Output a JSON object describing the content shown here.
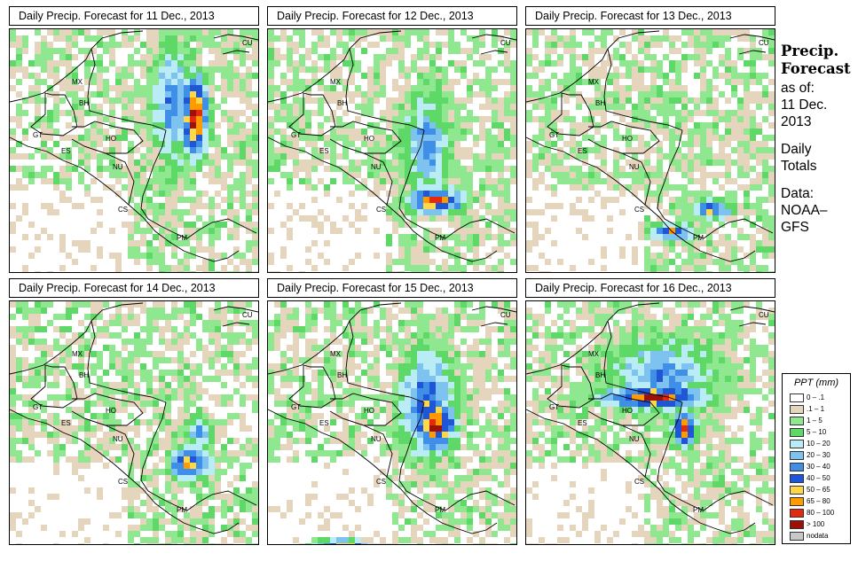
{
  "panels": [
    {
      "title": "Daily Precip. Forecast for  11 Dec., 2013",
      "seed": 11
    },
    {
      "title": "Daily Precip. Forecast for  12 Dec., 2013",
      "seed": 12
    },
    {
      "title": "Daily Precip. Forecast for  13 Dec., 2013",
      "seed": 13
    },
    {
      "title": "Daily Precip. Forecast for  14 Dec., 2013",
      "seed": 14
    },
    {
      "title": "Daily Precip. Forecast for  15 Dec., 2013",
      "seed": 15
    },
    {
      "title": "Daily Precip. Forecast for  16 Dec., 2013",
      "seed": 16
    }
  ],
  "country_labels": [
    "MX",
    "BH",
    "GT",
    "HO",
    "ES",
    "NU",
    "CS",
    "PM",
    "CU"
  ],
  "sidebar": {
    "heading_line1": "Precip.",
    "heading_line2": "Forecast",
    "asof_line1": "as of:",
    "asof_line2": "11 Dec.",
    "asof_line3": "2013",
    "totals_line1": "Daily",
    "totals_line2": "Totals",
    "data_line1": "Data:",
    "data_line2": "NOAA–",
    "data_line3": "GFS"
  },
  "legend": {
    "title": "PPT (mm)",
    "items": [
      {
        "label": "0 – .1",
        "color": "#ffffff"
      },
      {
        "label": ".1 – 1",
        "color": "#e5d5bd"
      },
      {
        "label": "1 – 5",
        "color": "#8fe88f"
      },
      {
        "label": "5 – 10",
        "color": "#5ed866"
      },
      {
        "label": "10 – 20",
        "color": "#b9ecf5"
      },
      {
        "label": "20 – 30",
        "color": "#7ec3ef"
      },
      {
        "label": "30 – 40",
        "color": "#3f8ee8"
      },
      {
        "label": "40 – 50",
        "color": "#1f56d6"
      },
      {
        "label": "50 – 65",
        "color": "#ffd84a"
      },
      {
        "label": "65 – 80",
        "color": "#ff9a00"
      },
      {
        "label": "80 – 100",
        "color": "#e42a0c"
      },
      {
        "label": "> 100",
        "color": "#9c1208"
      },
      {
        "label": "nodata",
        "color": "#c8c8c8"
      }
    ]
  }
}
